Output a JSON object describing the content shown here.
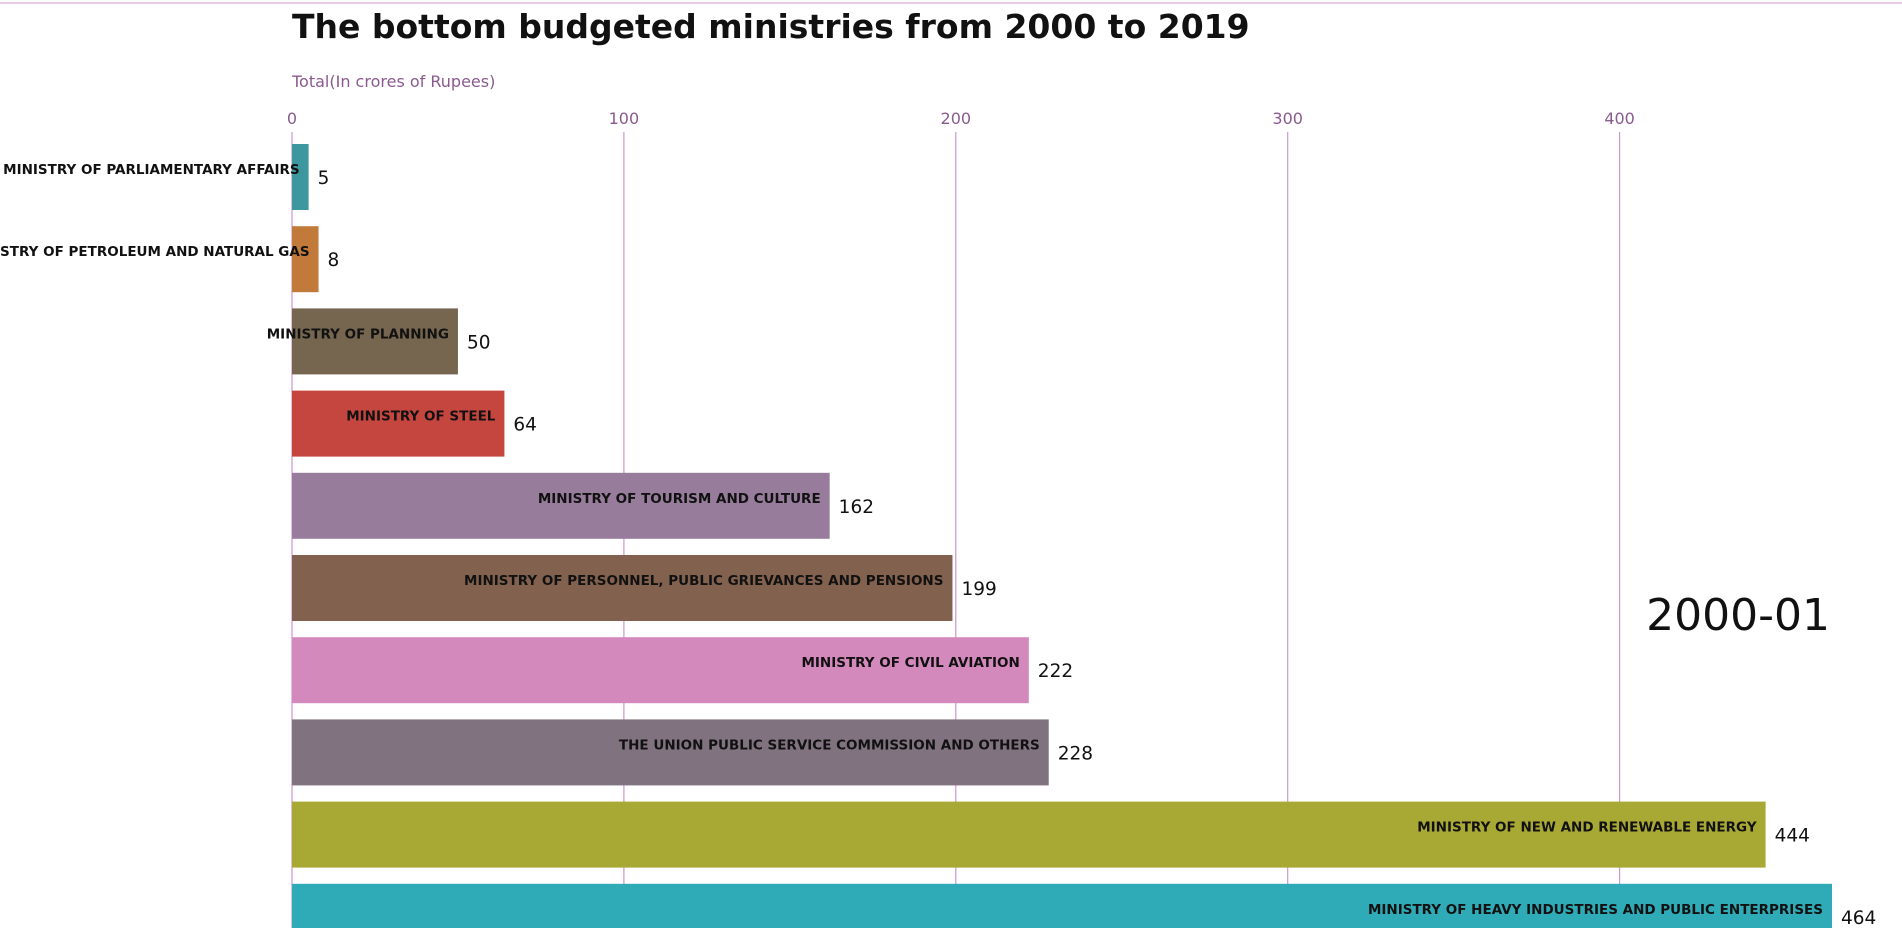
{
  "chart_data": {
    "type": "bar",
    "orientation": "horizontal",
    "title": "The bottom budgeted ministries from 2000 to 2019",
    "xlabel": "Total(In crores of Rupees)",
    "ylabel": "",
    "period": "2000-01",
    "xlim": [
      0,
      464
    ],
    "xticks": [
      0,
      100,
      200,
      300,
      400
    ],
    "grid": true,
    "legend": "none",
    "categories": [
      "MINISTRY OF PARLIAMENTARY AFFAIRS",
      "MINISTRY OF PETROLEUM AND NATURAL GAS",
      "MINISTRY OF PLANNING",
      "MINISTRY OF STEEL",
      "MINISTRY OF TOURISM AND CULTURE",
      "MINISTRY OF PERSONNEL, PUBLIC GRIEVANCES AND PENSIONS",
      "MINISTRY OF CIVIL AVIATION",
      "THE UNION PUBLIC SERVICE COMMISSION AND OTHERS",
      "MINISTRY OF NEW AND RENEWABLE ENERGY",
      "MINISTRY OF HEAVY INDUSTRIES AND PUBLIC ENTERPRISES"
    ],
    "values": [
      5,
      8,
      50,
      64,
      162,
      199,
      222,
      228,
      444,
      464
    ],
    "colors": [
      "#3d979f",
      "#c17a3a",
      "#76654f",
      "#c5453f",
      "#977c9c",
      "#83614f",
      "#d389bc",
      "#80727f",
      "#a8a835",
      "#2faab7"
    ],
    "gridline_color": "#cf95cf",
    "top_rule_color": "#e2b8e2",
    "axis_text_color": "#8a5a8f"
  }
}
